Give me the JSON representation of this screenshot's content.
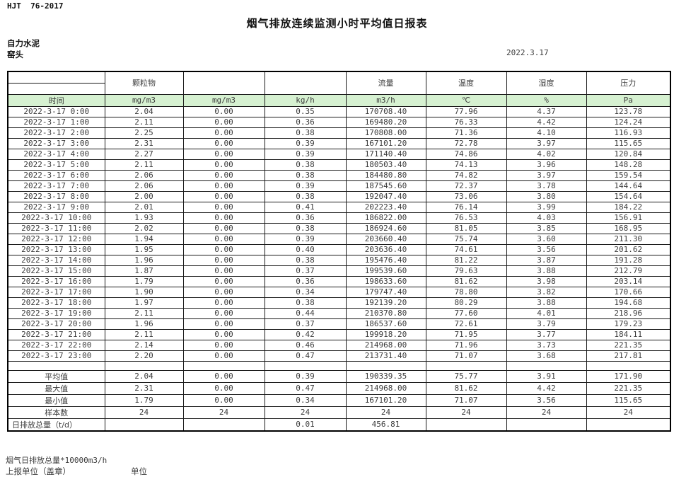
{
  "doc": {
    "standard_code": "HJT  76-2017",
    "title": "烟气排放连续监测小时平均值日报表",
    "company": "自力水泥",
    "site": "窑头",
    "date": "2022.3.17"
  },
  "table": {
    "group_headers": {
      "particulate": "颗粒物",
      "flow": "流量",
      "temperature": "温度",
      "humidity": "湿度",
      "pressure": "压力"
    },
    "unit_row": [
      "时间",
      "mg/m3",
      "mg/m3",
      "kg/h",
      "m3/h",
      "℃",
      "%",
      "Pa"
    ],
    "rows": [
      {
        "time": "2022-3-17 0:00",
        "values": [
          "2.04",
          "0.00",
          "0.35",
          "170708.40",
          "77.96",
          "4.37",
          "123.78"
        ]
      },
      {
        "time": "2022-3-17 1:00",
        "values": [
          "2.11",
          "0.00",
          "0.36",
          "169480.20",
          "76.33",
          "4.42",
          "124.24"
        ]
      },
      {
        "time": "2022-3-17 2:00",
        "values": [
          "2.25",
          "0.00",
          "0.38",
          "170808.00",
          "71.36",
          "4.10",
          "116.93"
        ]
      },
      {
        "time": "2022-3-17 3:00",
        "values": [
          "2.31",
          "0.00",
          "0.39",
          "167101.20",
          "72.78",
          "3.97",
          "115.65"
        ]
      },
      {
        "time": "2022-3-17 4:00",
        "values": [
          "2.27",
          "0.00",
          "0.39",
          "171140.40",
          "74.86",
          "4.02",
          "120.84"
        ]
      },
      {
        "time": "2022-3-17 5:00",
        "values": [
          "2.11",
          "0.00",
          "0.38",
          "180503.40",
          "74.13",
          "3.96",
          "148.28"
        ]
      },
      {
        "time": "2022-3-17 6:00",
        "values": [
          "2.06",
          "0.00",
          "0.38",
          "184480.80",
          "74.82",
          "3.97",
          "159.54"
        ]
      },
      {
        "time": "2022-3-17 7:00",
        "values": [
          "2.06",
          "0.00",
          "0.39",
          "187545.60",
          "72.37",
          "3.78",
          "144.64"
        ]
      },
      {
        "time": "2022-3-17 8:00",
        "values": [
          "2.00",
          "0.00",
          "0.38",
          "192047.40",
          "73.06",
          "3.80",
          "154.64"
        ]
      },
      {
        "time": "2022-3-17 9:00",
        "values": [
          "2.01",
          "0.00",
          "0.41",
          "202223.40",
          "76.14",
          "3.99",
          "184.22"
        ]
      },
      {
        "time": "2022-3-17 10:00",
        "values": [
          "1.93",
          "0.00",
          "0.36",
          "186822.00",
          "76.53",
          "4.03",
          "156.91"
        ]
      },
      {
        "time": "2022-3-17 11:00",
        "values": [
          "2.02",
          "0.00",
          "0.38",
          "186924.60",
          "81.05",
          "3.85",
          "168.95"
        ]
      },
      {
        "time": "2022-3-17 12:00",
        "values": [
          "1.94",
          "0.00",
          "0.39",
          "203660.40",
          "75.74",
          "3.60",
          "211.30"
        ]
      },
      {
        "time": "2022-3-17 13:00",
        "values": [
          "1.95",
          "0.00",
          "0.40",
          "203636.40",
          "74.61",
          "3.56",
          "201.62"
        ]
      },
      {
        "time": "2022-3-17 14:00",
        "values": [
          "1.96",
          "0.00",
          "0.38",
          "195476.40",
          "81.22",
          "3.87",
          "191.28"
        ]
      },
      {
        "time": "2022-3-17 15:00",
        "values": [
          "1.87",
          "0.00",
          "0.37",
          "199539.60",
          "79.63",
          "3.88",
          "212.79"
        ]
      },
      {
        "time": "2022-3-17 16:00",
        "values": [
          "1.79",
          "0.00",
          "0.36",
          "198633.60",
          "81.62",
          "3.98",
          "203.14"
        ]
      },
      {
        "time": "2022-3-17 17:00",
        "values": [
          "1.90",
          "0.00",
          "0.34",
          "179747.40",
          "78.80",
          "3.82",
          "170.66"
        ]
      },
      {
        "time": "2022-3-17 18:00",
        "values": [
          "1.97",
          "0.00",
          "0.38",
          "192139.20",
          "80.29",
          "3.88",
          "194.68"
        ]
      },
      {
        "time": "2022-3-17 19:00",
        "values": [
          "2.11",
          "0.00",
          "0.44",
          "210370.80",
          "77.60",
          "4.01",
          "218.96"
        ]
      },
      {
        "time": "2022-3-17 20:00",
        "values": [
          "1.96",
          "0.00",
          "0.37",
          "186537.60",
          "72.61",
          "3.79",
          "179.23"
        ]
      },
      {
        "time": "2022-3-17 21:00",
        "values": [
          "2.11",
          "0.00",
          "0.42",
          "199918.20",
          "71.95",
          "3.77",
          "184.11"
        ]
      },
      {
        "time": "2022-3-17 22:00",
        "values": [
          "2.14",
          "0.00",
          "0.46",
          "214968.00",
          "71.96",
          "3.73",
          "221.35"
        ]
      },
      {
        "time": "2022-3-17 23:00",
        "values": [
          "2.20",
          "0.00",
          "0.47",
          "213731.40",
          "71.07",
          "3.68",
          "217.81"
        ]
      }
    ],
    "summary_rows": [
      {
        "label": "平均值",
        "values": [
          "2.04",
          "0.00",
          "0.39",
          "190339.35",
          "75.77",
          "3.91",
          "171.90"
        ]
      },
      {
        "label": "最大值",
        "values": [
          "2.31",
          "0.00",
          "0.47",
          "214968.00",
          "81.62",
          "4.42",
          "221.35"
        ]
      },
      {
        "label": "最小值",
        "values": [
          "1.79",
          "0.00",
          "0.34",
          "167101.20",
          "71.07",
          "3.56",
          "115.65"
        ]
      },
      {
        "label": "样本数",
        "values": [
          "24",
          "24",
          "24",
          "24",
          "24",
          "24",
          "24"
        ]
      },
      {
        "label": "日排放总量（t/d）",
        "values": [
          "",
          "",
          "0.01",
          "456.81",
          "",
          "",
          ""
        ]
      }
    ]
  },
  "footer": {
    "note": "烟气日排放总量*10000m3/h",
    "report_unit": "上报单位（盖章）",
    "unit_label": "单位"
  },
  "colors": {
    "unit_row_bg": "#d6f1d1",
    "border": "#1a1a1a",
    "text": "#3c3c3c"
  }
}
